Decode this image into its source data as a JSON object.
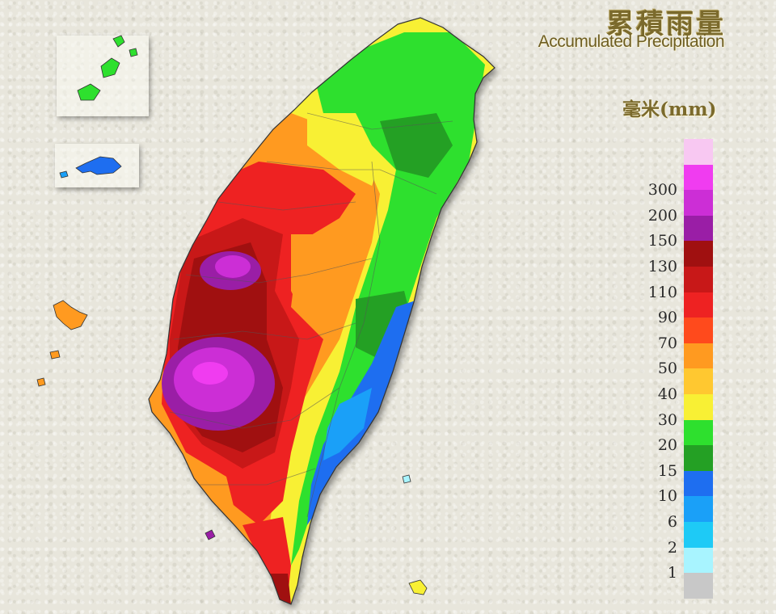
{
  "title_zh": "累積雨量",
  "title_en": "Accumulated Precipitation",
  "unit": "毫米(mm)",
  "legend": [
    {
      "label": "",
      "color": "#f8c8f2"
    },
    {
      "label": "300",
      "color": "#f03cf0"
    },
    {
      "label": "200",
      "color": "#cc2ed6"
    },
    {
      "label": "150",
      "color": "#9a1ea6"
    },
    {
      "label": "130",
      "color": "#a01010"
    },
    {
      "label": "110",
      "color": "#c81818"
    },
    {
      "label": "90",
      "color": "#ee2222"
    },
    {
      "label": "70",
      "color": "#ff4a1c"
    },
    {
      "label": "50",
      "color": "#ff9a20"
    },
    {
      "label": "40",
      "color": "#ffc830"
    },
    {
      "label": "30",
      "color": "#f8f034"
    },
    {
      "label": "20",
      "color": "#2ee02e"
    },
    {
      "label": "15",
      "color": "#24a024"
    },
    {
      "label": "10",
      "color": "#1e6ef0"
    },
    {
      "label": "6",
      "color": "#1aa0f8"
    },
    {
      "label": "2",
      "color": "#1ecaf6"
    },
    {
      "label": "1",
      "color": "#a8f4ff"
    },
    {
      "label": "",
      "color": "#c8c8c8"
    }
  ]
}
